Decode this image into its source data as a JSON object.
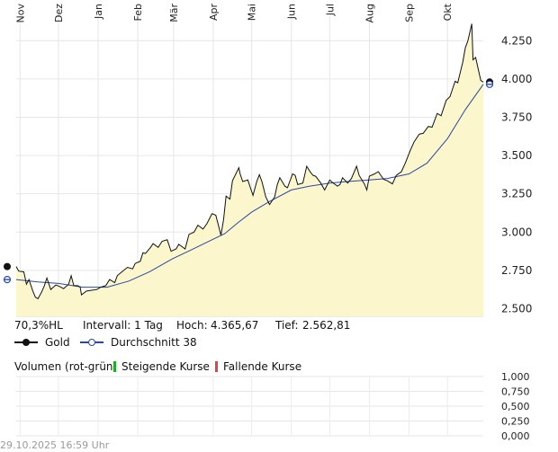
{
  "chart_data": {
    "type": "area",
    "months": [
      "Nov",
      "Dez",
      "Jan",
      "Feb",
      "Mär",
      "Apr",
      "Mai",
      "Jun",
      "Jul",
      "Aug",
      "Sep",
      "Okt"
    ],
    "x_start": "2024-10-29",
    "x_end": "2025-10-29",
    "ylim": [
      2450,
      4410
    ],
    "y_ticks": [
      2500,
      2750,
      3000,
      3250,
      3500,
      3750,
      4000,
      4250
    ],
    "y_tick_labels": [
      "2.500",
      "2.750",
      "3.000",
      "3.250",
      "3.500",
      "3.750",
      "4.000",
      "4.250"
    ],
    "series": [
      {
        "name": "Gold",
        "color": "#111111",
        "fill": "#fbf6cb",
        "points": [
          [
            "2024-10-29",
            2775
          ],
          [
            "2024-10-31",
            2745
          ],
          [
            "2024-11-04",
            2740
          ],
          [
            "2024-11-06",
            2660
          ],
          [
            "2024-11-08",
            2690
          ],
          [
            "2024-11-11",
            2615
          ],
          [
            "2024-11-13",
            2575
          ],
          [
            "2024-11-15",
            2565
          ],
          [
            "2024-11-18",
            2610
          ],
          [
            "2024-11-20",
            2650
          ],
          [
            "2024-11-22",
            2700
          ],
          [
            "2024-11-25",
            2625
          ],
          [
            "2024-11-27",
            2640
          ],
          [
            "2024-11-29",
            2655
          ],
          [
            "2024-12-03",
            2640
          ],
          [
            "2024-12-05",
            2630
          ],
          [
            "2024-12-09",
            2660
          ],
          [
            "2024-12-11",
            2715
          ],
          [
            "2024-12-13",
            2650
          ],
          [
            "2024-12-16",
            2650
          ],
          [
            "2024-12-18",
            2640
          ],
          [
            "2024-12-19",
            2590
          ],
          [
            "2024-12-23",
            2615
          ],
          [
            "2024-12-27",
            2620
          ],
          [
            "2024-12-31",
            2625
          ],
          [
            "2025-01-03",
            2640
          ],
          [
            "2025-01-07",
            2650
          ],
          [
            "2025-01-10",
            2690
          ],
          [
            "2025-01-14",
            2670
          ],
          [
            "2025-01-16",
            2715
          ],
          [
            "2025-01-21",
            2750
          ],
          [
            "2025-01-24",
            2770
          ],
          [
            "2025-01-28",
            2760
          ],
          [
            "2025-01-30",
            2795
          ],
          [
            "2025-02-03",
            2810
          ],
          [
            "2025-02-05",
            2865
          ],
          [
            "2025-02-07",
            2860
          ],
          [
            "2025-02-11",
            2900
          ],
          [
            "2025-02-13",
            2925
          ],
          [
            "2025-02-17",
            2900
          ],
          [
            "2025-02-20",
            2940
          ],
          [
            "2025-02-24",
            2950
          ],
          [
            "2025-02-27",
            2875
          ],
          [
            "2025-03-03",
            2890
          ],
          [
            "2025-03-05",
            2920
          ],
          [
            "2025-03-10",
            2890
          ],
          [
            "2025-03-13",
            2985
          ],
          [
            "2025-03-17",
            3000
          ],
          [
            "2025-03-20",
            3045
          ],
          [
            "2025-03-24",
            3020
          ],
          [
            "2025-03-27",
            3055
          ],
          [
            "2025-03-31",
            3120
          ],
          [
            "2025-04-03",
            3110
          ],
          [
            "2025-04-07",
            2980
          ],
          [
            "2025-04-09",
            3080
          ],
          [
            "2025-04-11",
            3235
          ],
          [
            "2025-04-14",
            3215
          ],
          [
            "2025-04-16",
            3335
          ],
          [
            "2025-04-21",
            3420
          ],
          [
            "2025-04-22",
            3380
          ],
          [
            "2025-04-24",
            3330
          ],
          [
            "2025-04-28",
            3340
          ],
          [
            "2025-04-30",
            3290
          ],
          [
            "2025-05-02",
            3240
          ],
          [
            "2025-05-05",
            3330
          ],
          [
            "2025-05-07",
            3375
          ],
          [
            "2025-05-09",
            3330
          ],
          [
            "2025-05-12",
            3230
          ],
          [
            "2025-05-15",
            3180
          ],
          [
            "2025-05-19",
            3230
          ],
          [
            "2025-05-21",
            3310
          ],
          [
            "2025-05-23",
            3355
          ],
          [
            "2025-05-27",
            3300
          ],
          [
            "2025-05-29",
            3290
          ],
          [
            "2025-06-02",
            3380
          ],
          [
            "2025-06-04",
            3370
          ],
          [
            "2025-06-06",
            3310
          ],
          [
            "2025-06-10",
            3320
          ],
          [
            "2025-06-13",
            3430
          ],
          [
            "2025-06-16",
            3390
          ],
          [
            "2025-06-18",
            3370
          ],
          [
            "2025-06-20",
            3365
          ],
          [
            "2025-06-24",
            3320
          ],
          [
            "2025-06-27",
            3275
          ],
          [
            "2025-07-01",
            3340
          ],
          [
            "2025-07-03",
            3325
          ],
          [
            "2025-07-07",
            3300
          ],
          [
            "2025-07-09",
            3310
          ],
          [
            "2025-07-11",
            3355
          ],
          [
            "2025-07-15",
            3320
          ],
          [
            "2025-07-18",
            3350
          ],
          [
            "2025-07-22",
            3430
          ],
          [
            "2025-07-24",
            3370
          ],
          [
            "2025-07-28",
            3315
          ],
          [
            "2025-07-30",
            3275
          ],
          [
            "2025-08-01",
            3365
          ],
          [
            "2025-08-05",
            3380
          ],
          [
            "2025-08-08",
            3395
          ],
          [
            "2025-08-12",
            3345
          ],
          [
            "2025-08-15",
            3335
          ],
          [
            "2025-08-19",
            3315
          ],
          [
            "2025-08-22",
            3370
          ],
          [
            "2025-08-26",
            3395
          ],
          [
            "2025-08-29",
            3450
          ],
          [
            "2025-09-02",
            3535
          ],
          [
            "2025-09-05",
            3590
          ],
          [
            "2025-09-09",
            3640
          ],
          [
            "2025-09-12",
            3645
          ],
          [
            "2025-09-16",
            3690
          ],
          [
            "2025-09-19",
            3685
          ],
          [
            "2025-09-23",
            3775
          ],
          [
            "2025-09-26",
            3760
          ],
          [
            "2025-09-30",
            3860
          ],
          [
            "2025-10-03",
            3885
          ],
          [
            "2025-10-07",
            3985
          ],
          [
            "2025-10-09",
            3975
          ],
          [
            "2025-10-13",
            4110
          ],
          [
            "2025-10-15",
            4205
          ],
          [
            "2025-10-17",
            4250
          ],
          [
            "2025-10-20",
            4360
          ],
          [
            "2025-10-21",
            4125
          ],
          [
            "2025-10-23",
            4140
          ],
          [
            "2025-10-27",
            3990
          ],
          [
            "2025-10-29",
            3980
          ]
        ]
      },
      {
        "name": "Durchschnitt 38",
        "color": "#2a47a8",
        "points": [
          [
            "2024-10-29",
            2690
          ],
          [
            "2024-11-15",
            2675
          ],
          [
            "2024-12-01",
            2665
          ],
          [
            "2024-12-20",
            2640
          ],
          [
            "2025-01-08",
            2640
          ],
          [
            "2025-01-25",
            2680
          ],
          [
            "2025-02-10",
            2740
          ],
          [
            "2025-02-28",
            2825
          ],
          [
            "2025-03-15",
            2885
          ],
          [
            "2025-03-31",
            2950
          ],
          [
            "2025-04-10",
            2990
          ],
          [
            "2025-04-20",
            3060
          ],
          [
            "2025-05-01",
            3130
          ],
          [
            "2025-05-15",
            3200
          ],
          [
            "2025-06-01",
            3275
          ],
          [
            "2025-06-15",
            3300
          ],
          [
            "2025-07-01",
            3320
          ],
          [
            "2025-07-15",
            3330
          ],
          [
            "2025-08-01",
            3340
          ],
          [
            "2025-08-15",
            3350
          ],
          [
            "2025-09-01",
            3380
          ],
          [
            "2025-09-15",
            3450
          ],
          [
            "2025-10-01",
            3610
          ],
          [
            "2025-10-15",
            3800
          ],
          [
            "2025-10-29",
            3965
          ]
        ]
      }
    ],
    "volume": {
      "title": "Volumen (rot-grün)",
      "ylim": [
        0,
        1
      ],
      "y_tick_labels": [
        "1,000",
        "0,750",
        "0,500",
        "0,250",
        "0,000"
      ]
    }
  },
  "info": {
    "range_label": "70,3%HL",
    "interval_label": "Intervall: 1 Tag",
    "high_label": "Hoch:",
    "high_value": "4.365,67",
    "low_label": "Tief:",
    "low_value": "2.562,81"
  },
  "legend": {
    "gold": "Gold",
    "average": "Durchschnitt 38",
    "rising": "Steigende Kurse",
    "falling": "Fallende Kurse",
    "rising_color": "#22aa22",
    "falling_color": "#e04545"
  },
  "timestamp": "29.10.2025 16:59 Uhr"
}
